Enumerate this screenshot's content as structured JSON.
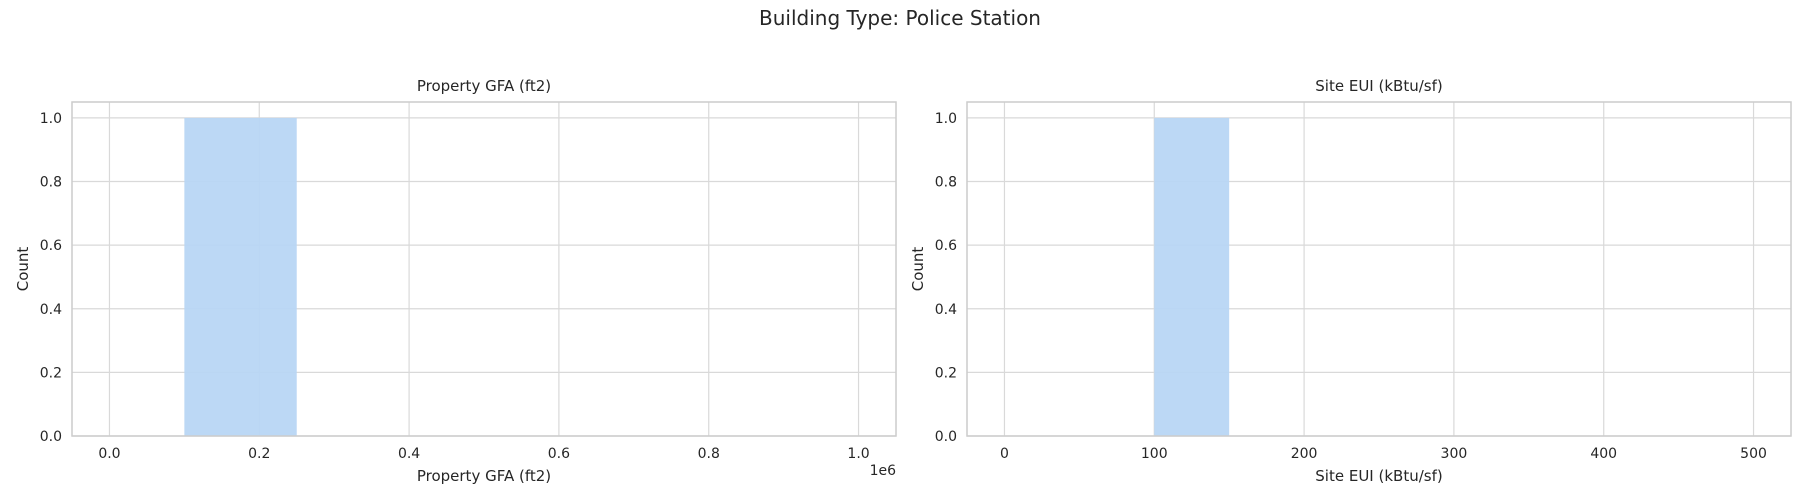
{
  "suptitle": "Building Type: Police Station",
  "colors": {
    "bar": "#b8d6f4",
    "grid": "#d9d9d9",
    "spine": "#cccccc",
    "background": "#ffffff"
  },
  "chart_data": [
    {
      "type": "bar",
      "title": "Property GFA (ft2)",
      "xlabel": "Property GFA (ft2)",
      "ylabel": "Count",
      "offset_label": "1e6",
      "xlim": [
        -50000,
        1050000
      ],
      "ylim": [
        0,
        1.05
      ],
      "xticks": [
        0,
        200000,
        400000,
        600000,
        800000,
        1000000
      ],
      "xtick_labels": [
        "0.0",
        "0.2",
        "0.4",
        "0.6",
        "0.8",
        "1.0"
      ],
      "yticks": [
        0,
        0.2,
        0.4,
        0.6,
        0.8,
        1.0
      ],
      "ytick_labels": [
        "0.0",
        "0.2",
        "0.4",
        "0.6",
        "0.8",
        "1.0"
      ],
      "grid": true,
      "bins": [
        {
          "x0": 100000,
          "x1": 250000,
          "count": 1
        }
      ]
    },
    {
      "type": "bar",
      "title": "Site EUI (kBtu/sf)",
      "xlabel": "Site EUI (kBtu/sf)",
      "ylabel": "Count",
      "offset_label": "",
      "xlim": [
        -25,
        525
      ],
      "ylim": [
        0,
        1.05
      ],
      "xticks": [
        0,
        100,
        200,
        300,
        400,
        500
      ],
      "xtick_labels": [
        "0",
        "100",
        "200",
        "300",
        "400",
        "500"
      ],
      "yticks": [
        0,
        0.2,
        0.4,
        0.6,
        0.8,
        1.0
      ],
      "ytick_labels": [
        "0.0",
        "0.2",
        "0.4",
        "0.6",
        "0.8",
        "1.0"
      ],
      "grid": true,
      "bins": [
        {
          "x0": 100,
          "x1": 150,
          "count": 1
        }
      ]
    }
  ]
}
